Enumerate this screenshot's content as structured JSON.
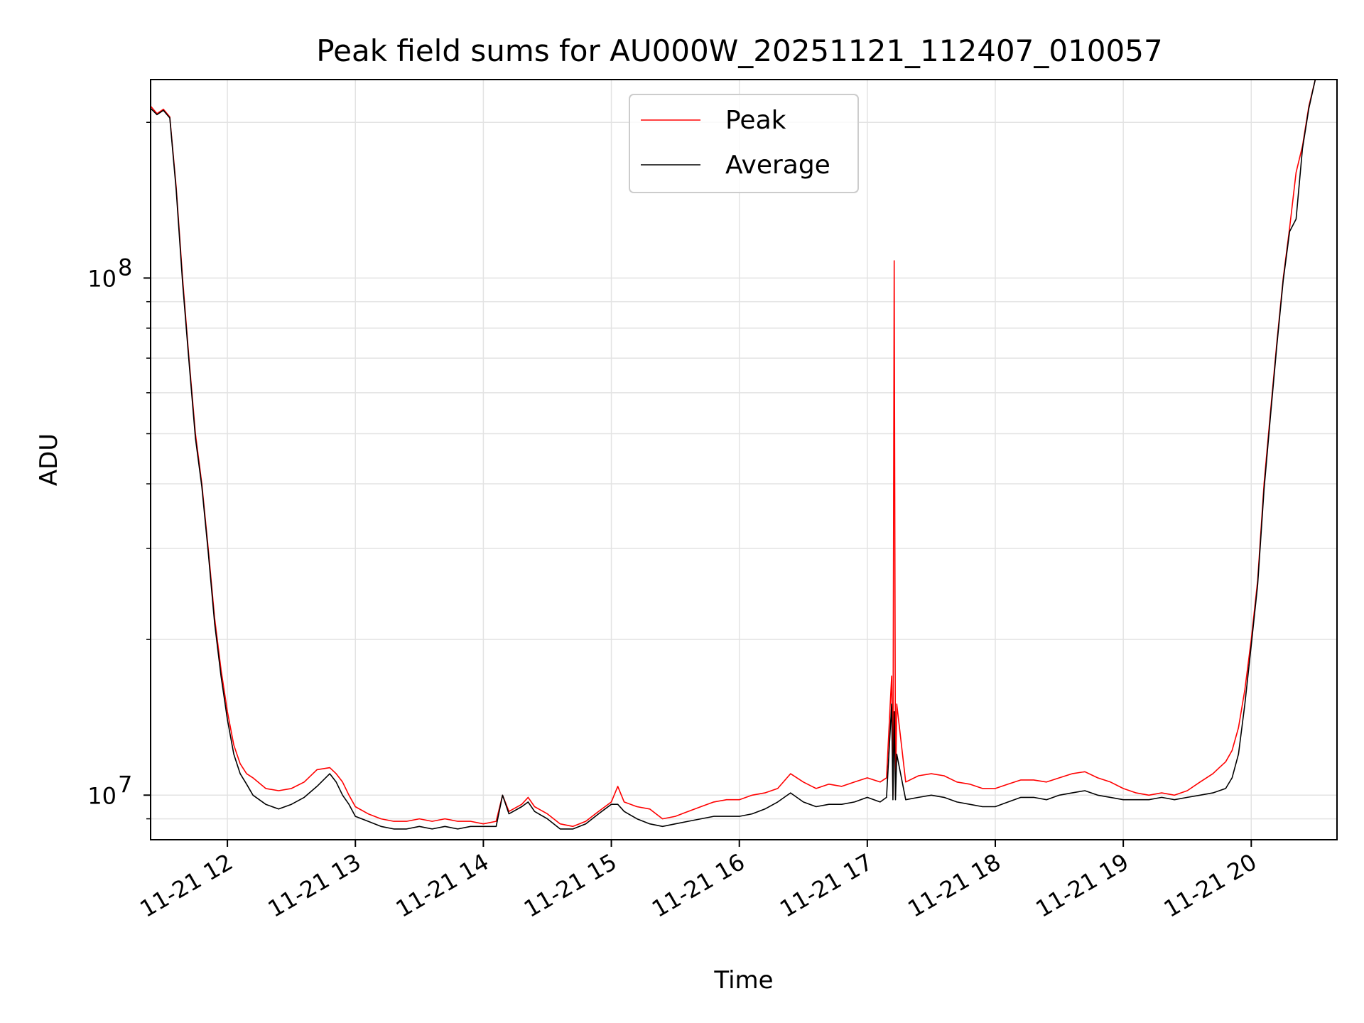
{
  "chart_data": {
    "type": "line",
    "title": "Peak field sums for AU000W_20251121_112407_010057",
    "xlabel": "Time",
    "ylabel": "ADU",
    "yscale": "log",
    "xlim": [
      11.4,
      20.67
    ],
    "ylim": [
      8200000,
      242000000
    ],
    "x_ticks": [
      {
        "x": 12,
        "label": "11-21 12"
      },
      {
        "x": 13,
        "label": "11-21 13"
      },
      {
        "x": 14,
        "label": "11-21 14"
      },
      {
        "x": 15,
        "label": "11-21 15"
      },
      {
        "x": 16,
        "label": "11-21 16"
      },
      {
        "x": 17,
        "label": "11-21 17"
      },
      {
        "x": 18,
        "label": "11-21 18"
      },
      {
        "x": 19,
        "label": "11-21 19"
      },
      {
        "x": 20,
        "label": "11-21 20"
      }
    ],
    "y_ticks": [
      {
        "y": 10000000,
        "base": "10",
        "exp": "7"
      },
      {
        "y": 100000000,
        "base": "10",
        "exp": "8"
      }
    ],
    "grid": true,
    "legend_position": "top-center",
    "series": [
      {
        "name": "Peak",
        "color": "#ff0000",
        "x": [
          11.4,
          11.45,
          11.5,
          11.55,
          11.6,
          11.65,
          11.7,
          11.75,
          11.8,
          11.85,
          11.9,
          11.95,
          12.0,
          12.05,
          12.1,
          12.15,
          12.2,
          12.3,
          12.4,
          12.5,
          12.6,
          12.7,
          12.8,
          12.85,
          12.9,
          12.95,
          13.0,
          13.1,
          13.2,
          13.3,
          13.4,
          13.5,
          13.6,
          13.7,
          13.8,
          13.9,
          14.0,
          14.1,
          14.15,
          14.2,
          14.3,
          14.35,
          14.4,
          14.5,
          14.6,
          14.7,
          14.8,
          14.9,
          15.0,
          15.05,
          15.1,
          15.2,
          15.3,
          15.4,
          15.5,
          15.6,
          15.7,
          15.8,
          15.9,
          16.0,
          16.1,
          16.2,
          16.3,
          16.4,
          16.5,
          16.6,
          16.7,
          16.8,
          16.9,
          17.0,
          17.1,
          17.15,
          17.19,
          17.2,
          17.21,
          17.22,
          17.23,
          17.3,
          17.4,
          17.5,
          17.6,
          17.7,
          17.8,
          17.9,
          18.0,
          18.1,
          18.2,
          18.3,
          18.4,
          18.5,
          18.6,
          18.7,
          18.8,
          18.9,
          19.0,
          19.1,
          19.2,
          19.3,
          19.4,
          19.5,
          19.6,
          19.7,
          19.75,
          19.8,
          19.85,
          19.9,
          19.95,
          20.0,
          20.05,
          20.1,
          20.15,
          20.2,
          20.25,
          20.3,
          20.35,
          20.4,
          20.45,
          20.5
        ],
        "y": [
          215000000,
          208000000,
          212000000,
          205000000,
          150000000,
          100000000,
          70000000,
          50000000,
          40000000,
          30000000,
          22000000,
          17500000,
          14500000,
          12500000,
          11500000,
          11000000,
          10800000,
          10300000,
          10200000,
          10300000,
          10600000,
          11200000,
          11300000,
          11000000,
          10600000,
          10000000,
          9500000,
          9200000,
          9000000,
          8900000,
          8900000,
          9000000,
          8900000,
          9000000,
          8900000,
          8900000,
          8800000,
          8900000,
          10000000,
          9300000,
          9600000,
          9900000,
          9500000,
          9200000,
          8800000,
          8700000,
          8900000,
          9300000,
          9700000,
          10400000,
          9700000,
          9500000,
          9400000,
          9000000,
          9100000,
          9300000,
          9500000,
          9700000,
          9800000,
          9800000,
          10000000,
          10100000,
          10300000,
          11000000,
          10600000,
          10300000,
          10500000,
          10400000,
          10600000,
          10800000,
          10600000,
          10800000,
          17000000,
          10000000,
          108000000,
          10000000,
          15000000,
          10600000,
          10900000,
          11000000,
          10900000,
          10600000,
          10500000,
          10300000,
          10300000,
          10500000,
          10700000,
          10700000,
          10600000,
          10800000,
          11000000,
          11100000,
          10800000,
          10600000,
          10300000,
          10100000,
          10000000,
          10100000,
          10000000,
          10200000,
          10600000,
          11000000,
          11300000,
          11600000,
          12200000,
          13500000,
          16000000,
          20000000,
          26000000,
          40000000,
          55000000,
          75000000,
          100000000,
          125000000,
          160000000,
          180000000,
          215000000,
          242000000
        ]
      },
      {
        "name": "Average",
        "color": "#000000",
        "x": [
          11.4,
          11.45,
          11.5,
          11.55,
          11.6,
          11.65,
          11.7,
          11.75,
          11.8,
          11.85,
          11.9,
          11.95,
          12.0,
          12.05,
          12.1,
          12.15,
          12.2,
          12.3,
          12.4,
          12.5,
          12.6,
          12.7,
          12.8,
          12.85,
          12.9,
          12.95,
          13.0,
          13.1,
          13.2,
          13.3,
          13.4,
          13.5,
          13.6,
          13.7,
          13.8,
          13.9,
          14.0,
          14.1,
          14.15,
          14.2,
          14.3,
          14.35,
          14.4,
          14.5,
          14.6,
          14.7,
          14.8,
          14.9,
          15.0,
          15.05,
          15.1,
          15.2,
          15.3,
          15.4,
          15.5,
          15.6,
          15.7,
          15.8,
          15.9,
          16.0,
          16.1,
          16.2,
          16.3,
          16.4,
          16.5,
          16.6,
          16.7,
          16.8,
          16.9,
          17.0,
          17.1,
          17.15,
          17.19,
          17.2,
          17.21,
          17.22,
          17.23,
          17.3,
          17.4,
          17.5,
          17.6,
          17.7,
          17.8,
          17.9,
          18.0,
          18.1,
          18.2,
          18.3,
          18.4,
          18.5,
          18.6,
          18.7,
          18.8,
          18.9,
          19.0,
          19.1,
          19.2,
          19.3,
          19.4,
          19.5,
          19.6,
          19.7,
          19.75,
          19.8,
          19.85,
          19.9,
          19.95,
          20.0,
          20.05,
          20.1,
          20.15,
          20.2,
          20.25,
          20.3,
          20.35,
          20.4,
          20.45,
          20.5
        ],
        "y": [
          213000000,
          207000000,
          211000000,
          204000000,
          148000000,
          98000000,
          69000000,
          49000000,
          39500000,
          29500000,
          21500000,
          17000000,
          14000000,
          12000000,
          11000000,
          10500000,
          10000000,
          9600000,
          9400000,
          9600000,
          9900000,
          10400000,
          11000000,
          10600000,
          10000000,
          9600000,
          9100000,
          8900000,
          8700000,
          8600000,
          8600000,
          8700000,
          8600000,
          8700000,
          8600000,
          8700000,
          8700000,
          8700000,
          10000000,
          9200000,
          9500000,
          9700000,
          9300000,
          9000000,
          8600000,
          8600000,
          8800000,
          9200000,
          9600000,
          9600000,
          9300000,
          9000000,
          8800000,
          8700000,
          8800000,
          8900000,
          9000000,
          9100000,
          9100000,
          9100000,
          9200000,
          9400000,
          9700000,
          10100000,
          9700000,
          9500000,
          9600000,
          9600000,
          9700000,
          9900000,
          9700000,
          9900000,
          15000000,
          9800000,
          14500000,
          9800000,
          12000000,
          9800000,
          9900000,
          10000000,
          9900000,
          9700000,
          9600000,
          9500000,
          9500000,
          9700000,
          9900000,
          9900000,
          9800000,
          10000000,
          10100000,
          10200000,
          10000000,
          9900000,
          9800000,
          9800000,
          9800000,
          9900000,
          9800000,
          9900000,
          10000000,
          10100000,
          10200000,
          10300000,
          10800000,
          12000000,
          15000000,
          19500000,
          25500000,
          39000000,
          54000000,
          74000000,
          99000000,
          123000000,
          130000000,
          178000000,
          213000000,
          242000000
        ]
      }
    ]
  }
}
